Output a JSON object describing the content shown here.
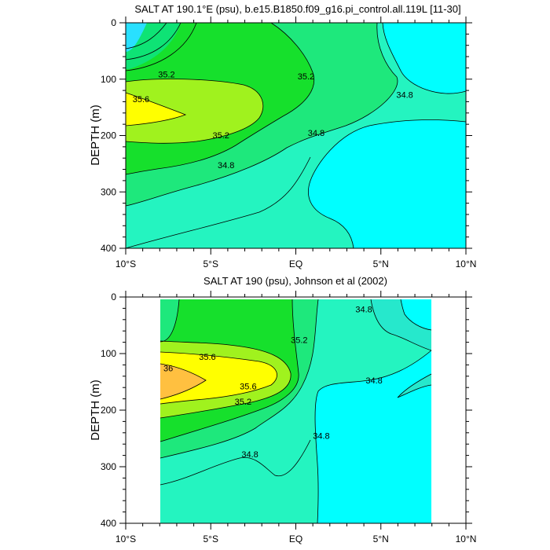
{
  "chart_data": [
    {
      "type": "contour",
      "title": "SALT AT 190.1°E (psu), b.e15.B1850.f09_g16.pi_control.all.119L [11-30]",
      "ylabel": "DEPTH (m)",
      "xlabel": "",
      "xlim": [
        -10,
        10
      ],
      "ylim": [
        400,
        0
      ],
      "x_ticks": [
        {
          "value": -10,
          "label": "10°S"
        },
        {
          "value": -5,
          "label": "5°S"
        },
        {
          "value": 0,
          "label": "EQ"
        },
        {
          "value": 5,
          "label": "5°N"
        },
        {
          "value": 10,
          "label": "10°N"
        }
      ],
      "y_ticks": [
        0,
        100,
        200,
        300,
        400
      ],
      "data_extent_x": [
        -10,
        10
      ],
      "levels": [
        34.0,
        34.2,
        34.4,
        34.6,
        34.8,
        35.0,
        35.2,
        35.4,
        35.6,
        35.8,
        36.0
      ],
      "fill_colors": {
        "lt34.4": "#3fdcff",
        "34.4-34.8": "#00ffff",
        "34.8-35.0": "#24f4c0",
        "35.0-35.2": "#1ee87c",
        "35.2-35.4": "#16e02c",
        "35.4-35.6": "#a0f21e",
        "35.6-36.0": "#ffff00",
        "gt36.0": "#ffc040"
      },
      "contour_labels": [
        {
          "value": "35.2",
          "x": -7.6,
          "depth": 97
        },
        {
          "value": "35.6",
          "x": -9.1,
          "depth": 141
        },
        {
          "value": "35.2",
          "x": 0.6,
          "depth": 100
        },
        {
          "value": "34.8",
          "x": 6.4,
          "depth": 133
        },
        {
          "value": "35.2",
          "x": -4.4,
          "depth": 205
        },
        {
          "value": "34.8",
          "x": 1.2,
          "depth": 201
        },
        {
          "value": "34.8",
          "x": -4.1,
          "depth": 258
        }
      ]
    },
    {
      "type": "contour",
      "title": "SALT AT 190 (psu), Johnson et al (2002)",
      "ylabel": "DEPTH (m)",
      "xlabel": "",
      "xlim": [
        -10,
        10
      ],
      "ylim": [
        400,
        0
      ],
      "x_ticks": [
        {
          "value": -10,
          "label": "10°S"
        },
        {
          "value": -5,
          "label": "5°S"
        },
        {
          "value": 0,
          "label": "EQ"
        },
        {
          "value": 5,
          "label": "5°N"
        },
        {
          "value": 10,
          "label": "10°N"
        }
      ],
      "y_ticks": [
        0,
        100,
        200,
        300,
        400
      ],
      "data_extent_x": [
        -8,
        8
      ],
      "levels": [
        34.4,
        34.6,
        34.8,
        35.0,
        35.2,
        35.4,
        35.6,
        35.8,
        36.0
      ],
      "fill_colors": {
        "34.4-34.6": "#00ffff",
        "34.6-34.8": "#26e8cc",
        "34.8-35.0": "#24f4c0",
        "35.0-35.2": "#1ee87c",
        "35.2-35.4": "#16e02c",
        "35.4-35.6": "#a0f21e",
        "35.6-36.0": "#ffff00",
        "gt36.0": "#ffc040"
      },
      "contour_labels": [
        {
          "value": "34.8",
          "x": 4.0,
          "depth": 27
        },
        {
          "value": "35.2",
          "x": 0.2,
          "depth": 81
        },
        {
          "value": "35.6",
          "x": -5.2,
          "depth": 111
        },
        {
          "value": "36",
          "x": -7.5,
          "depth": 131
        },
        {
          "value": "34.8",
          "x": 4.6,
          "depth": 153
        },
        {
          "value": "35.6",
          "x": -2.8,
          "depth": 163
        },
        {
          "value": "35.2",
          "x": -3.1,
          "depth": 190
        },
        {
          "value": "34.8",
          "x": 1.5,
          "depth": 251
        },
        {
          "value": "34.8",
          "x": -2.7,
          "depth": 283
        }
      ]
    }
  ]
}
